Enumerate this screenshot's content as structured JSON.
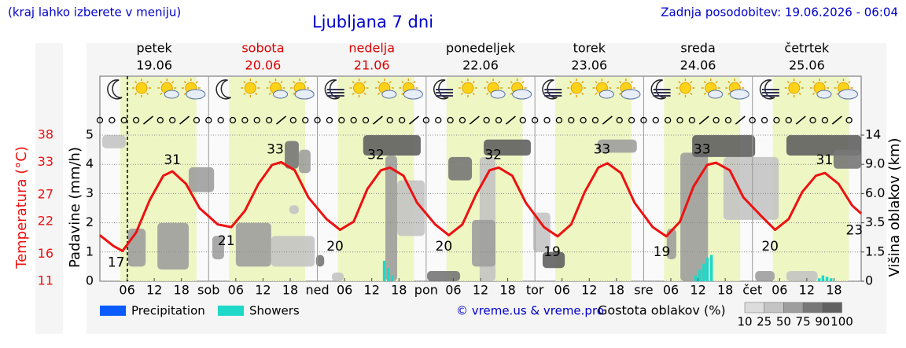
{
  "chart_data": {
    "type": "meteogram",
    "note_left": "(kraj lahko izberete v meniju)",
    "title": "Ljubljana 7 dni",
    "updated": "Zadnja posodobitev: 19.06.2026 - 06:04",
    "days": [
      {
        "name": "petek",
        "date": "19.06",
        "color": "#000000"
      },
      {
        "name": "sobota",
        "date": "20.06",
        "color": "#dd0000"
      },
      {
        "name": "nedelja",
        "date": "21.06",
        "color": "#dd0000"
      },
      {
        "name": "ponedeljek",
        "date": "22.06",
        "color": "#000000"
      },
      {
        "name": "torek",
        "date": "23.06",
        "color": "#000000"
      },
      {
        "name": "sreda",
        "date": "24.06",
        "color": "#000000"
      },
      {
        "name": "četrtek",
        "date": "25.06",
        "color": "#000000"
      }
    ],
    "ylabel": "Padavine (mm/h)",
    "tlabel": "Temperatura (°C)",
    "y2label": "Višina oblakov (km)",
    "xlim": [
      0,
      168
    ],
    "xticks": [
      {
        "value": 6,
        "label": "06"
      },
      12,
      18,
      {
        "value": 24,
        "label": "sob"
      },
      {
        "value": 30,
        "label": "06"
      },
      {
        "value": 36,
        "label": "12"
      },
      {
        "value": 42,
        "label": "18"
      },
      {
        "value": 48,
        "label": "ned"
      },
      {
        "value": 54,
        "label": "06"
      },
      {
        "value": 60,
        "label": "12"
      },
      {
        "value": 66,
        "label": "18"
      },
      {
        "value": 72,
        "label": "pon"
      },
      {
        "value": 78,
        "label": "06"
      },
      {
        "value": 84,
        "label": "12"
      },
      {
        "value": 90,
        "label": "18"
      },
      {
        "value": 96,
        "label": "tor"
      },
      {
        "value": 102,
        "label": "06"
      },
      {
        "value": 108,
        "label": "12"
      },
      {
        "value": 114,
        "label": "18"
      },
      {
        "value": 120,
        "label": "sre"
      },
      {
        "value": 126,
        "label": "06"
      },
      {
        "value": 132,
        "label": "12"
      },
      {
        "value": 138,
        "label": "18"
      },
      {
        "value": 144,
        "label": "čet"
      },
      {
        "value": 150,
        "label": "06"
      },
      {
        "value": 156,
        "label": "12"
      },
      {
        "value": 162,
        "label": "18"
      }
    ],
    "ylim": [
      0,
      5
    ],
    "yticks": [
      0,
      1,
      2,
      3,
      4,
      5
    ],
    "tlim": [
      11,
      38
    ],
    "tticks": [
      11,
      16,
      22,
      27,
      33,
      38
    ],
    "y2ticks": [
      0,
      1.5,
      3.5,
      {
        "value": 6,
        "label": "6.0"
      },
      {
        "value": 9,
        "label": "9.0"
      },
      14
    ],
    "grid": true,
    "daylight": {
      "from": 4.5,
      "to": 21.3
    },
    "now": 6.07,
    "temperature": {
      "color": "#ee1111",
      "x": [
        0,
        3,
        5,
        8,
        11,
        14,
        16,
        19,
        22,
        26,
        29,
        32,
        35,
        38,
        40,
        43,
        46,
        50,
        53,
        56,
        59,
        62,
        64,
        67,
        70,
        74,
        77,
        80,
        83,
        86,
        88,
        91,
        94,
        98,
        101,
        104,
        107,
        110,
        112,
        115,
        118,
        122,
        125,
        128,
        131,
        134,
        136,
        139,
        142,
        146,
        149,
        152,
        155,
        158,
        160,
        163,
        166,
        168
      ],
      "values": [
        19.5,
        17.5,
        16.6,
        20,
        26,
        30.5,
        31.3,
        29,
        24.5,
        21.5,
        21,
        24,
        29,
        32.5,
        33,
        31.5,
        26.5,
        22.5,
        20.5,
        22,
        28,
        31.5,
        32,
        30.5,
        25.5,
        21.5,
        19.5,
        21.5,
        27,
        31.5,
        32,
        30.5,
        25.5,
        21,
        19.3,
        21.5,
        27.5,
        32,
        32.8,
        31,
        25.5,
        21,
        19.3,
        22,
        28.5,
        32.5,
        32.9,
        31.5,
        26.5,
        23,
        20.5,
        22.5,
        27.5,
        30.5,
        31,
        29,
        25,
        23.5
      ]
    },
    "temp_labels": [
      {
        "x": 3.6,
        "value": 17
      },
      {
        "x": 16,
        "value": 31
      },
      {
        "x": 27.9,
        "value": 21
      },
      {
        "x": 38.7,
        "value": 33
      },
      {
        "x": 51.9,
        "value": 20
      },
      {
        "x": 60.9,
        "value": 32
      },
      {
        "x": 75.9,
        "value": 20
      },
      {
        "x": 86.8,
        "value": 32
      },
      {
        "x": 99.8,
        "value": 19
      },
      {
        "x": 110.8,
        "value": 33
      },
      {
        "x": 124,
        "value": 19
      },
      {
        "x": 132.9,
        "value": 33
      },
      {
        "x": 147.9,
        "value": 20
      },
      {
        "x": 159.9,
        "value": 31
      },
      {
        "x": 166.5,
        "value": 23
      }
    ],
    "series": [
      {
        "name": "Precipitation",
        "color": "#0a5cff",
        "x": [],
        "values": []
      },
      {
        "name": "Showers",
        "color": "#1ed8c8",
        "x": [
          62.8,
          63.7,
          64.6,
          131.5,
          132.4,
          133.3,
          134.1,
          135,
          158.8,
          159.6,
          160.5,
          161.4
        ],
        "values": [
          0.7,
          0.45,
          0.2,
          0.2,
          0.4,
          0.6,
          0.8,
          0.9,
          0.1,
          0.2,
          0.15,
          0.1
        ]
      }
    ],
    "clouds": [
      {
        "x": [
          0.5,
          5.7
        ],
        "y": [
          4.55,
          5
        ],
        "density": 25
      },
      {
        "x": [
          19.6,
          25.2
        ],
        "y": [
          3.05,
          3.9
        ],
        "density": 50
      },
      {
        "x": [
          6.2,
          10.1
        ],
        "y": [
          0.5,
          1.8
        ],
        "density": 50
      },
      {
        "x": [
          12.7,
          19.6
        ],
        "y": [
          0.4,
          2
        ],
        "density": 50
      },
      {
        "x": [
          24.8,
          27.4
        ],
        "y": [
          0.75,
          1.55
        ],
        "density": 50
      },
      {
        "x": [
          30,
          37.8
        ],
        "y": [
          0.5,
          2
        ],
        "density": 50
      },
      {
        "x": [
          37.8,
          47.4
        ],
        "y": [
          0.5,
          1.55
        ],
        "density": 25
      },
      {
        "x": [
          40.8,
          43.9
        ],
        "y": [
          3.85,
          4.8
        ],
        "density": 75
      },
      {
        "x": [
          43.9,
          46.5
        ],
        "y": [
          3.7,
          4.5
        ],
        "density": 50
      },
      {
        "x": [
          41.8,
          43.9
        ],
        "y": [
          2.3,
          2.6
        ],
        "density": 25
      },
      {
        "x": [
          47.7,
          49.5
        ],
        "y": [
          0.5,
          0.9
        ],
        "density": 75
      },
      {
        "x": [
          51.2,
          53.8
        ],
        "y": [
          0,
          0.3
        ],
        "density": 25
      },
      {
        "x": [
          65.6,
          71.7
        ],
        "y": [
          1.55,
          3.45
        ],
        "density": 25
      },
      {
        "x": [
          63,
          65.6
        ],
        "y": [
          0,
          4.3
        ],
        "density": 50
      },
      {
        "x": [
          58.1,
          70.8
        ],
        "y": [
          4.3,
          5
        ],
        "density": 90
      },
      {
        "x": [
          72.2,
          79.5
        ],
        "y": [
          0,
          0.35
        ],
        "density": 75
      },
      {
        "x": [
          76.9,
          82.1
        ],
        "y": [
          3.45,
          4.25
        ],
        "density": 75
      },
      {
        "x": [
          83.8,
          87.3
        ],
        "y": [
          0,
          4.25
        ],
        "density": 25
      },
      {
        "x": [
          82.1,
          87.3
        ],
        "y": [
          0.5,
          2.1
        ],
        "density": 50
      },
      {
        "x": [
          84.7,
          95.1
        ],
        "y": [
          4.3,
          4.85
        ],
        "density": 90
      },
      {
        "x": [
          95.6,
          99.4
        ],
        "y": [
          1,
          2.35
        ],
        "density": 25
      },
      {
        "x": [
          97.7,
          102.6
        ],
        "y": [
          0.45,
          1
        ],
        "density": 90
      },
      {
        "x": [
          109.8,
          118.5
        ],
        "y": [
          4.4,
          4.85
        ],
        "density": 50
      },
      {
        "x": [
          125.1,
          127.2
        ],
        "y": [
          0.75,
          1.8
        ],
        "density": 50
      },
      {
        "x": [
          137.6,
          149.8
        ],
        "y": [
          2.1,
          4.25
        ],
        "density": 25
      },
      {
        "x": [
          128.1,
          134.2
        ],
        "y": [
          0,
          4.4
        ],
        "density": 50
      },
      {
        "x": [
          130.7,
          144.6
        ],
        "y": [
          4.25,
          5
        ],
        "density": 90
      },
      {
        "x": [
          144.6,
          148.9
        ],
        "y": [
          0,
          0.35
        ],
        "density": 50
      },
      {
        "x": [
          151.5,
          158.4
        ],
        "y": [
          0,
          0.35
        ],
        "density": 25
      },
      {
        "x": [
          151.5,
          168
        ],
        "y": [
          4.3,
          5
        ],
        "density": 90
      },
      {
        "x": [
          161.9,
          168
        ],
        "y": [
          3.85,
          4.5
        ],
        "density": 75
      }
    ],
    "copyright": "© vreme.us & vreme.pro",
    "density_label": "Gostota oblakov (%)",
    "density_legend": [
      10,
      25,
      50,
      75,
      90,
      100
    ]
  }
}
